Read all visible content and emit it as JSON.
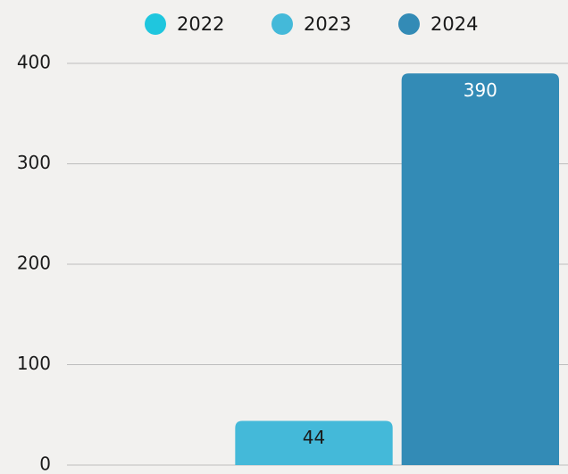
{
  "chart_data": {
    "type": "bar",
    "categories": [
      null
    ],
    "series": [
      {
        "name": "2022",
        "color": "#1fc6de",
        "values": [
          null
        ]
      },
      {
        "name": "2023",
        "color": "#44b9d9",
        "values": [
          44
        ]
      },
      {
        "name": "2024",
        "color": "#338bb6",
        "values": [
          390
        ]
      }
    ],
    "ylim": [
      0,
      400
    ],
    "yticks": [
      0,
      100,
      200,
      300,
      400
    ],
    "grid": true,
    "legend": "top"
  }
}
